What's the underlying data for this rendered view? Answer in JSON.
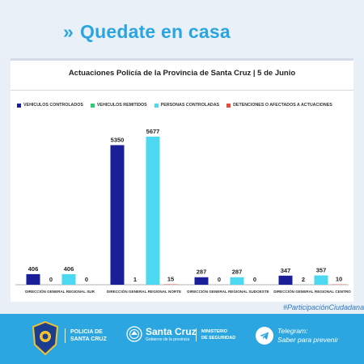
{
  "banner": {
    "title": "Quedate en casa",
    "chevron": "»"
  },
  "footer": {
    "police_line1": "POLICIA DE",
    "police_line2": "SANTA CRUZ",
    "brand_name": "Santa Cruz",
    "brand_sub": "Gobierno de la provincia",
    "ministry_line1": "MINISTERIO",
    "ministry_line2": "DE SEGURIDAD",
    "telegram_line1": "Telegram:",
    "telegram_line2": "Saber para prevenir",
    "hashtag": "#ParticipaciónCiudadana",
    "icons": [
      "police-badge-icon",
      "province-seal-icon",
      "telegram-icon"
    ]
  },
  "colors": {
    "banner_text": "#2aa5e0",
    "footer_bg": "#2ba6e1",
    "hashtag": "#2b78c2"
  },
  "chart_data": {
    "type": "bar",
    "title": "Actuaciones Policía de la Provincia de Santa Cruz | 5 de Junio",
    "categories": [
      "DIRECCIÓN GENERAL REGIONAL SUR",
      "DIRECCIÓN GENERAL REGIONAL NORTE",
      "DIRECCIÓN GENERAL REGIONAL SUDOESTE",
      "DIRECCIÓN GENERAL REGIONAL CENTRO"
    ],
    "series": [
      {
        "name": "VEHICULOS CONTROLADOS",
        "color": "#1a1f99",
        "values": [
          406,
          5350,
          287,
          347
        ]
      },
      {
        "name": "VEHICULOS REMITIDOS",
        "color": "#2ecc71",
        "values": [
          0,
          1,
          0,
          2
        ]
      },
      {
        "name": "PERSONAS CONTROLADAS",
        "color": "#4dd8f2",
        "values": [
          406,
          5677,
          287,
          357
        ]
      },
      {
        "name": "DETENCIONES O AFECTADOS A ACTUACIONES",
        "color": "#e64a3c",
        "values": [
          0,
          15,
          0,
          10
        ]
      }
    ],
    "ylim": [
      0,
      6200
    ],
    "grid": false,
    "legend": "top"
  }
}
